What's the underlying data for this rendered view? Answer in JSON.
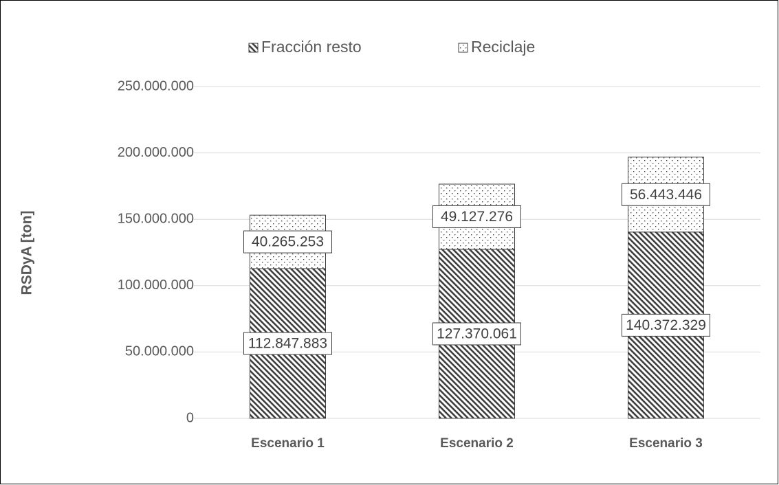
{
  "chart_data": {
    "type": "stacked_bar",
    "y_label": "RSDyA [ton]",
    "categories": [
      "Escenario 1",
      "Escenario 2",
      "Escenario 3"
    ],
    "series": [
      {
        "name": "Fracción resto",
        "color": "#404040",
        "pattern": "hatch",
        "values": [
          112847883,
          127370061,
          140372329
        ],
        "value_labels": [
          "112.847.883",
          "127.370.061",
          "140.372.329"
        ]
      },
      {
        "name": "Reciclaje",
        "color": "#404040",
        "pattern": "dots",
        "values": [
          40265253,
          49127276,
          56443446
        ],
        "value_labels": [
          "40.265.253",
          "49.127.276",
          "56.443.446"
        ]
      }
    ],
    "ylim": [
      0,
      250000000
    ],
    "yticks": [
      0,
      {
        "value": 50000000,
        "label": "50.000.000"
      },
      {
        "value": 100000000,
        "label": "100.000.000"
      },
      {
        "value": 150000000,
        "label": "150.000.000"
      },
      {
        "value": 200000000,
        "label": "200.000.000"
      },
      {
        "value": 250000000,
        "label": "250.000.000"
      }
    ],
    "grid": true,
    "legend": "top"
  }
}
